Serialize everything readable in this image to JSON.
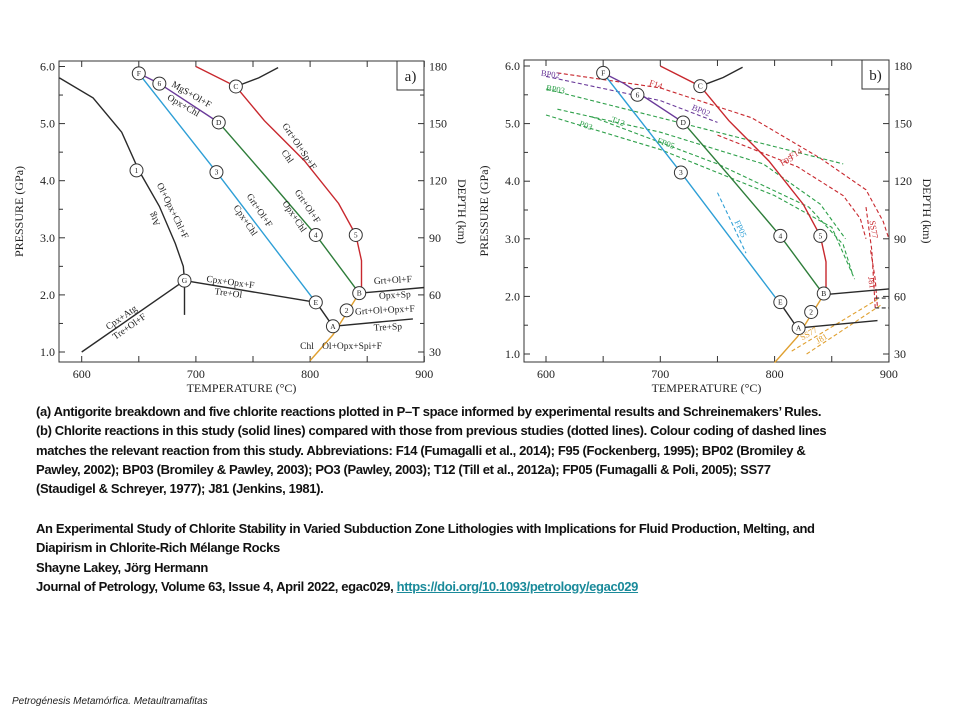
{
  "figure": {
    "axes": {
      "xlabel": "TEMPERATURE (°C)",
      "ylabel": "PRESSURE (GPa)",
      "y2label": "DEPTH (km)",
      "xticks": [
        "600",
        "700",
        "800",
        "900"
      ],
      "yticks": [
        "1.0",
        "2.0",
        "3.0",
        "4.0",
        "5.0",
        "6.0"
      ],
      "y2ticks": [
        "30",
        "60",
        "90",
        "120",
        "150",
        "180"
      ]
    },
    "panel_a": {
      "tag": "a)",
      "points": [
        {
          "id": "F",
          "T": 650,
          "P": 5.88
        },
        {
          "id": "6",
          "T": 668,
          "P": 5.7
        },
        {
          "id": "C",
          "T": 735,
          "P": 5.65
        },
        {
          "id": "D",
          "T": 720,
          "P": 5.02
        },
        {
          "id": "1",
          "T": 648,
          "P": 4.18
        },
        {
          "id": "3",
          "T": 718,
          "P": 4.15
        },
        {
          "id": "4",
          "T": 805,
          "P": 3.05
        },
        {
          "id": "5",
          "T": 840,
          "P": 3.05
        },
        {
          "id": "G",
          "T": 690,
          "P": 2.25
        },
        {
          "id": "E",
          "T": 805,
          "P": 1.87
        },
        {
          "id": "B",
          "T": 843,
          "P": 2.03
        },
        {
          "id": "2",
          "T": 832,
          "P": 1.73
        },
        {
          "id": "A",
          "T": 820,
          "P": 1.45
        }
      ],
      "labels": [
        "MgS+Ol+F",
        "Opx+Chl",
        "Ol+Opx+Chl+F",
        "Atg",
        "Grt+Ol+F",
        "Cpx+Chl",
        "Grt+Ol+F",
        "Opx+Chl",
        "Grt+Ol+Sp+F",
        "Chl",
        "Cpx+Opx+F",
        "Tre+Ol",
        "Cpx+Atg",
        "Tre+Ol+F",
        "Grt+Ol+F",
        "Opx+Sp",
        "Grt+Ol+Opx+F",
        "Tre+Sp",
        "Chl",
        "Ol+Opx+Spi+F"
      ]
    },
    "panel_b": {
      "tag": "b)",
      "points": [
        {
          "id": "F",
          "T": 650,
          "P": 5.88
        },
        {
          "id": "6",
          "T": 680,
          "P": 5.5
        },
        {
          "id": "C",
          "T": 735,
          "P": 5.65
        },
        {
          "id": "D",
          "T": 720,
          "P": 5.02
        },
        {
          "id": "3",
          "T": 718,
          "P": 4.15
        },
        {
          "id": "4",
          "T": 805,
          "P": 3.05
        },
        {
          "id": "5",
          "T": 840,
          "P": 3.05
        },
        {
          "id": "E",
          "T": 805,
          "P": 1.9
        },
        {
          "id": "B",
          "T": 843,
          "P": 2.05
        },
        {
          "id": "2",
          "T": 832,
          "P": 1.73
        },
        {
          "id": "A",
          "T": 821,
          "P": 1.45
        }
      ],
      "labels": [
        "BP02",
        "BP03",
        "F14",
        "BP02",
        "T12",
        "P03",
        "FP05",
        "F14",
        "F95",
        "FP05",
        "SS77",
        "J81",
        "SS77",
        "J81"
      ]
    },
    "colors": {
      "black": "#2a2a2a",
      "blue": "#2e9fd6",
      "purple": "#6a3a9a",
      "green": "#2e7d3a",
      "red": "#c8282e",
      "orange": "#e0a030",
      "dgreen": "#2ea04a"
    }
  },
  "caption": {
    "lines": [
      "(a) Antigorite breakdown and five chlorite reactions plotted in P–T space informed by experimental results and Schreinemakers’ Rules.",
      "(b) Chlorite reactions in this study (solid lines) compared with those from previous studies (dotted lines). Colour coding of dashed lines",
      "matches the relevant reaction from this study. Abbreviations: F14 (Fumagalli et al., 2014); F95 (Fockenberg, 1995); BP02 (Bromiley &",
      "Pawley, 2002); BP03 (Bromiley & Pawley, 2003); PO3 (Pawley, 2003); T12 (Till et al., 2012a); FP05 (Fumagalli & Poli, 2005); SS77",
      "(Staudigel & Schreyer, 1977); J81 (Jenkins, 1981)."
    ]
  },
  "reference": {
    "title_line1": "An Experimental Study of Chlorite Stability in Varied Subduction Zone Lithologies with Implications for Fluid Production, Melting, and",
    "title_line2": "Diapirism in Chlorite-Rich Mélange Rocks",
    "authors": "Shayne Lakey, Jörg Hermann",
    "journal": "Journal of Petrology, Volume 63, Issue 4, April 2022, egac029, ",
    "doi": "https://doi.org/10.1093/petrology/egac029"
  },
  "footer": "Petrogénesis  Metamórfica.  Metaultramafitas"
}
